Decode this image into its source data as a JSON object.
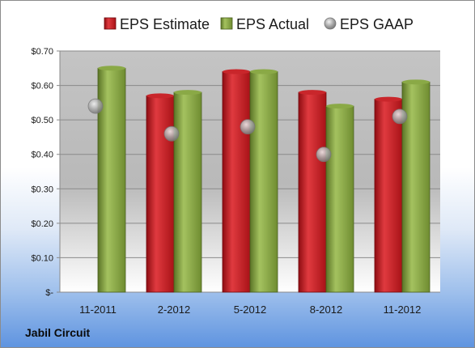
{
  "company": "Jabil Circuit",
  "colors": {
    "estimate": "#c0151c",
    "actual": "#7d9a3a",
    "gaap": "#a9a9a9",
    "plot_top": "#c8c8c8",
    "plot_bottom": "#ffffff"
  },
  "chart_data": {
    "type": "bar",
    "categories": [
      "11-2011",
      "2-2012",
      "5-2012",
      "8-2012",
      "11-2012"
    ],
    "series": [
      {
        "name": "EPS Estimate",
        "kind": "bar",
        "values": [
          null,
          0.57,
          0.64,
          0.58,
          0.56
        ]
      },
      {
        "name": "EPS Actual",
        "kind": "bar",
        "values": [
          0.65,
          0.58,
          0.64,
          0.54,
          0.61
        ]
      },
      {
        "name": "EPS GAAP",
        "kind": "marker",
        "values": [
          0.54,
          0.46,
          0.48,
          0.4,
          0.51
        ]
      }
    ],
    "ylim": [
      0,
      0.7
    ],
    "yticks": [
      0,
      0.1,
      0.2,
      0.3,
      0.4,
      0.5,
      0.6,
      0.7
    ],
    "ytick_labels": [
      "$-",
      "$0.10",
      "$0.20",
      "$0.30",
      "$0.40",
      "$0.50",
      "$0.60",
      "$0.70"
    ],
    "legend_position": "top",
    "grid": true
  }
}
